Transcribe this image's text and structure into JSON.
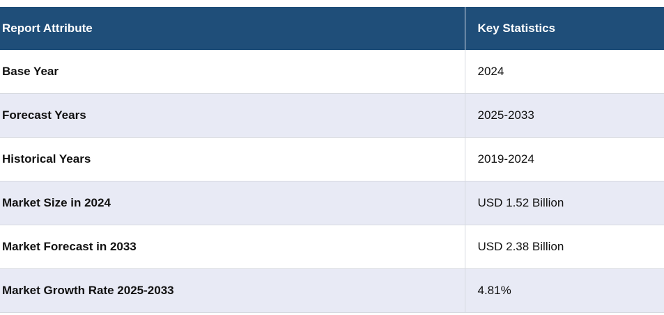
{
  "table": {
    "headers": [
      "Report Attribute",
      "Key Statistics"
    ],
    "rows": [
      {
        "attribute": "Base Year",
        "value": "2024"
      },
      {
        "attribute": "Forecast Years",
        "value": "2025-2033"
      },
      {
        "attribute": "Historical Years",
        "value": "2019-2024"
      },
      {
        "attribute": "Market Size in 2024",
        "value": "USD 1.52 Billion"
      },
      {
        "attribute": "Market Forecast in 2033",
        "value": "USD 2.38 Billion"
      },
      {
        "attribute": "Market Growth Rate 2025-2033",
        "value": "4.81%"
      }
    ]
  },
  "colors": {
    "header_background": "#1f4e79",
    "header_text": "#ffffff",
    "stripe_row": "#e8eaf5"
  }
}
